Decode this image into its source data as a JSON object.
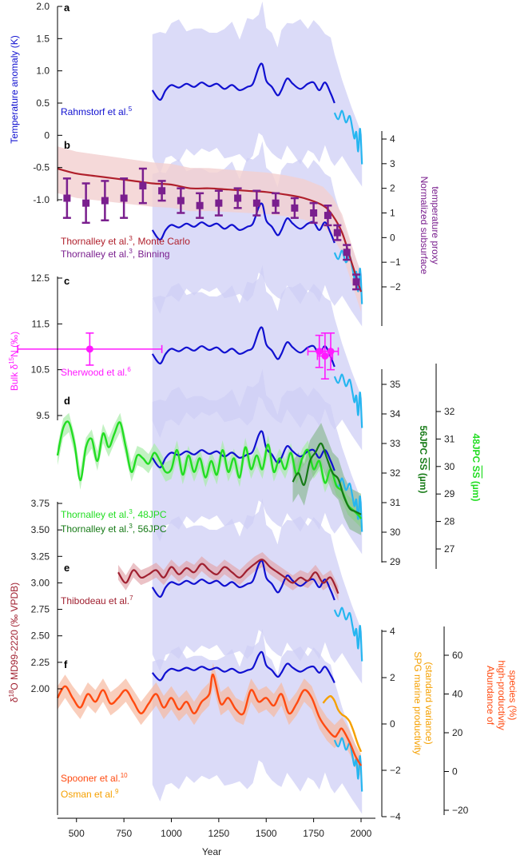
{
  "figure": {
    "x_axis": {
      "label": "Year",
      "min": 400,
      "max": 2020,
      "ticks": [
        500,
        750,
        1000,
        1250,
        1500,
        1750,
        2000
      ],
      "tick_labels": [
        "500",
        "750",
        "1000",
        "1250",
        "1500",
        "1750",
        "2000"
      ]
    },
    "colors": {
      "band": "#cfcff6",
      "rahmstorf": "#1010d0",
      "light_blue": "#26b6f0",
      "thornalley_mc": "#b0202c",
      "thornalley_mc_band": "#f2cfcf",
      "thornalley_bin": "#7a1f8e",
      "sherwood": "#ff1aff",
      "green48": "#22dd22",
      "green56": "#167a16",
      "thibodeau": "#a02030",
      "spooner": "#ff4a10",
      "osman": "#f5a000"
    },
    "panels": [
      {
        "letter": "a",
        "legend": [
          {
            "text": "Rahmstorf et al.",
            "sup": "5",
            "color": "#1010d0"
          }
        ]
      },
      {
        "letter": "b",
        "legend": [
          {
            "text": "Thornalley et al.",
            "sup": "3",
            "suffix": ", Monte Carlo",
            "color": "#b0202c"
          },
          {
            "text": "Thornalley et al.",
            "sup": "3",
            "suffix": ", Binning",
            "color": "#7a1f8e"
          }
        ]
      },
      {
        "letter": "c",
        "legend": [
          {
            "text": "Sherwood et al.",
            "sup": "6",
            "color": "#ff1aff"
          }
        ]
      },
      {
        "letter": "d",
        "legend": [
          {
            "text": "Thornalley et al.",
            "sup": "3",
            "suffix": ", 48JPC",
            "color": "#22dd22"
          },
          {
            "text": "Thornalley et al.",
            "sup": "3",
            "suffix": ", 56JPC",
            "color": "#167a16"
          }
        ]
      },
      {
        "letter": "e",
        "legend": [
          {
            "text": "Thibodeau et al.",
            "sup": "7",
            "color": "#a02030"
          }
        ]
      },
      {
        "letter": "f",
        "legend": [
          {
            "text": "Spooner et al.",
            "sup": "10",
            "color": "#ff4a10"
          },
          {
            "text": "Osman et al.",
            "sup": "9",
            "color": "#f5a000"
          }
        ]
      }
    ],
    "left_axes": [
      {
        "id": "temp",
        "label": "Temperature anomaly (K)",
        "color": "#1010d0",
        "range": [
          -1.3,
          2.0
        ],
        "ticks": [
          2.0,
          1.5,
          1.0,
          0.5,
          0,
          -0.5,
          -1.0
        ],
        "tick_labels": [
          "2.0",
          "1.5",
          "1.0",
          "0.5",
          "0",
          "-0.5",
          "-1.0"
        ]
      },
      {
        "id": "d15n",
        "label_parts": [
          "Bulk δ",
          "15",
          "N (‰)"
        ],
        "color": "#ff1aff",
        "range": [
          9.3,
          12.8
        ],
        "ticks": [
          12.5,
          11.5,
          10.5,
          9.5
        ],
        "tick_labels": [
          "12.5",
          "11.5",
          "10.5",
          "9.5"
        ]
      },
      {
        "id": "d18o",
        "label_parts": [
          "δ",
          "18",
          "O MD99-2220 (‰ VPDB)"
        ],
        "color": "#a02030",
        "range": [
          1.55,
          3.75
        ],
        "ticks": [
          3.75,
          3.5,
          3.25,
          3.0,
          2.75,
          2.5,
          2.25,
          2.0
        ],
        "tick_labels": [
          "3.75",
          "3.50",
          "3.25",
          "3.00",
          "2.75",
          "2.50",
          "2.25",
          "2.00"
        ]
      }
    ],
    "right_axes": [
      {
        "id": "subsurf",
        "label_lines": [
          "Normalized subsurface",
          "temperature proxy"
        ],
        "color": "#7a1f8e",
        "range": [
          -3,
          4
        ],
        "ticks": [
          4,
          3,
          2,
          1,
          0,
          -1,
          -2
        ],
        "tick_labels": [
          "4",
          "3",
          "2",
          "1",
          "0",
          "−1",
          "−2"
        ]
      },
      {
        "id": "jpc56",
        "label_parts": [
          "56JPC ",
          "SS",
          " (µm)"
        ],
        "color": "#167a16",
        "range": [
          29,
          35.5
        ],
        "ticks": [
          35,
          34,
          33,
          32,
          31,
          30,
          29
        ],
        "tick_labels": [
          "35",
          "34",
          "33",
          "32",
          "31",
          "30",
          "29"
        ]
      },
      {
        "id": "jpc48",
        "label_parts": [
          "48JPC ",
          "SS",
          " (µm)"
        ],
        "color": "#22dd22",
        "range": [
          26.5,
          33
        ],
        "ticks": [
          32,
          31,
          30,
          29,
          28,
          27
        ],
        "tick_labels": [
          "32",
          "31",
          "30",
          "29",
          "28",
          "27"
        ]
      },
      {
        "id": "spg",
        "label_lines": [
          "SPG marine productivity",
          "(standard variance)"
        ],
        "color": "#f5a000",
        "range": [
          -4,
          4
        ],
        "ticks": [
          4,
          2,
          0,
          -2,
          -4
        ],
        "tick_labels": [
          "4",
          "2",
          "0",
          "−2",
          "−4"
        ]
      },
      {
        "id": "highprod",
        "label_lines": [
          "Abundance of",
          "high-productivity",
          "species (%)"
        ],
        "color": "#ff4a10",
        "range": [
          -25,
          75
        ],
        "ticks": [
          60,
          40,
          20,
          0,
          -20
        ],
        "tick_labels": [
          "60",
          "40",
          "20",
          "0",
          "−20"
        ]
      }
    ]
  },
  "chart_data": {
    "type": "line",
    "xlabel": "Year",
    "xlim": [
      400,
      2020
    ],
    "series": [
      {
        "panel": "a",
        "axis": "temp",
        "color": "#1010d0",
        "x": [
          900,
          940,
          970,
          1000,
          1040,
          1080,
          1120,
          1160,
          1200,
          1240,
          1280,
          1320,
          1360,
          1400,
          1430,
          1460,
          1480,
          1500,
          1530,
          1560,
          1580,
          1610,
          1640,
          1680,
          1720,
          1750,
          1780,
          1810,
          1840,
          1860
        ],
        "y": [
          0.7,
          0.55,
          0.7,
          0.78,
          0.74,
          0.8,
          0.75,
          0.82,
          0.76,
          0.8,
          0.72,
          0.78,
          0.7,
          0.75,
          0.8,
          1.05,
          1.1,
          0.85,
          0.75,
          0.62,
          0.7,
          0.88,
          0.8,
          0.72,
          0.8,
          0.82,
          0.7,
          0.82,
          0.65,
          0.5
        ]
      },
      {
        "panel": "a",
        "axis": "temp",
        "color": "#26b6f0",
        "x": [
          1860,
          1880,
          1900,
          1920,
          1940,
          1955,
          1965,
          1975,
          1985,
          1995,
          2005
        ],
        "y": [
          0.35,
          0.25,
          0.38,
          0.2,
          0.3,
          0.1,
          -0.05,
          0.05,
          -0.25,
          0.1,
          -0.45
        ]
      },
      {
        "panel": "b",
        "axis": "subsurf",
        "color": "#b0202c",
        "x": [
          400,
          500,
          600,
          700,
          800,
          900,
          1000,
          1100,
          1200,
          1300,
          1400,
          1500,
          1600,
          1700,
          1800,
          1850,
          1900,
          1950,
          2000
        ],
        "y": [
          2.8,
          2.6,
          2.5,
          2.4,
          2.3,
          2.2,
          2.15,
          2.0,
          2.0,
          1.95,
          1.9,
          1.85,
          1.75,
          1.6,
          1.3,
          0.9,
          0.2,
          -1.0,
          -2.2
        ]
      },
      {
        "panel": "b",
        "axis": "subsurf",
        "color": "#7a1f8e",
        "markers": "square-errorbar",
        "x": [
          450,
          550,
          650,
          750,
          850,
          950,
          1050,
          1150,
          1250,
          1350,
          1450,
          1550,
          1650,
          1750,
          1825,
          1875,
          1925,
          1975
        ],
        "y": [
          1.6,
          1.4,
          1.5,
          1.6,
          2.1,
          1.9,
          1.5,
          1.3,
          1.4,
          1.6,
          1.4,
          1.4,
          1.2,
          1.0,
          0.9,
          0.2,
          -0.6,
          -1.8
        ],
        "err": [
          0.8,
          0.8,
          0.8,
          0.8,
          0.7,
          0.4,
          0.5,
          0.5,
          0.5,
          0.4,
          0.5,
          0.4,
          0.4,
          0.4,
          0.4,
          0.3,
          0.3,
          0.3
        ]
      },
      {
        "panel": "c",
        "axis": "d15n",
        "color": "#ff1aff",
        "markers": "circle-errorbar",
        "x": [
          570,
          1780,
          1810,
          1840
        ],
        "y": [
          10.95,
          10.9,
          10.8,
          10.9
        ],
        "xerr": [
          380,
          60,
          40,
          40
        ],
        "yerr": [
          0.35,
          0.35,
          0.5,
          0.4
        ]
      },
      {
        "panel": "d",
        "axis": "jpc48",
        "color": "#22dd22",
        "x": [
          400,
          430,
          460,
          490,
          520,
          550,
          580,
          610,
          640,
          670,
          700,
          730,
          760,
          790,
          820,
          850,
          880,
          910,
          940,
          970,
          1000,
          1030,
          1060,
          1090,
          1120,
          1150,
          1180,
          1210,
          1240,
          1270,
          1300,
          1330,
          1360,
          1390,
          1420,
          1450,
          1480,
          1510,
          1540,
          1570,
          1600,
          1630,
          1660,
          1690,
          1720,
          1750,
          1780,
          1810,
          1840,
          1870,
          1900,
          1930,
          1960,
          1990,
          2000
        ],
        "y": [
          30.4,
          31.4,
          31.6,
          30.8,
          29.5,
          30.7,
          31.0,
          30.2,
          31.2,
          30.7,
          31.2,
          31.6,
          30.7,
          29.8,
          30.4,
          30.3,
          30.1,
          30.5,
          30.2,
          29.8,
          29.9,
          30.6,
          29.7,
          30.4,
          29.8,
          30.3,
          29.6,
          30.2,
          29.7,
          30.6,
          29.8,
          30.3,
          29.6,
          30.7,
          29.9,
          30.4,
          29.9,
          30.8,
          29.8,
          30.3,
          29.9,
          30.5,
          29.7,
          30.3,
          30.6,
          29.9,
          30.2,
          29.4,
          29.9,
          29.3,
          29.1,
          28.6,
          28.4,
          28.2,
          28.1
        ]
      },
      {
        "panel": "d",
        "axis": "jpc56",
        "color": "#167a16",
        "x": [
          1640,
          1670,
          1700,
          1730,
          1760,
          1790,
          1820,
          1850,
          1880,
          1910,
          1940,
          1970,
          2000
        ],
        "y": [
          31.7,
          32.0,
          31.6,
          32.4,
          32.7,
          33.0,
          32.5,
          32.0,
          31.8,
          31.2,
          30.8,
          30.7,
          30.6
        ]
      },
      {
        "panel": "e",
        "axis": "d18o",
        "color": "#a02030",
        "x": [
          720,
          760,
          800,
          840,
          880,
          920,
          960,
          1000,
          1040,
          1080,
          1120,
          1160,
          1200,
          1240,
          1280,
          1320,
          1360,
          1400,
          1440,
          1480,
          1520,
          1560,
          1600,
          1640,
          1680,
          1720,
          1760,
          1800,
          1840,
          1880
        ],
        "y": [
          3.1,
          3.0,
          3.12,
          3.05,
          3.08,
          3.12,
          3.05,
          3.15,
          3.08,
          3.14,
          3.1,
          3.18,
          3.12,
          3.08,
          3.15,
          3.1,
          3.05,
          3.12,
          3.18,
          3.22,
          3.15,
          3.1,
          3.05,
          3.0,
          3.05,
          3.02,
          3.1,
          3.0,
          3.05,
          2.9
        ]
      },
      {
        "panel": "f",
        "axis": "highprod",
        "color": "#ff4a10",
        "x": [
          400,
          440,
          480,
          520,
          560,
          600,
          640,
          680,
          720,
          760,
          800,
          840,
          880,
          920,
          960,
          1000,
          1040,
          1080,
          1120,
          1160,
          1200,
          1220,
          1260,
          1300,
          1340,
          1380,
          1420,
          1460,
          1500,
          1540,
          1580,
          1620,
          1660,
          1700,
          1740,
          1780,
          1820,
          1860,
          1880,
          1900,
          1940,
          1970,
          2000
        ],
        "y": [
          38,
          44,
          38,
          33,
          40,
          36,
          42,
          35,
          38,
          42,
          36,
          30,
          35,
          40,
          33,
          38,
          32,
          36,
          30,
          36,
          40,
          50,
          35,
          38,
          32,
          30,
          42,
          36,
          38,
          34,
          40,
          30,
          35,
          42,
          38,
          28,
          22,
          18,
          20,
          22,
          15,
          8,
          3
        ]
      },
      {
        "panel": "f",
        "axis": "spg",
        "color": "#f5a000",
        "x": [
          1800,
          1820,
          1840,
          1860,
          1880,
          1900,
          1920,
          1940,
          1960,
          1980,
          2000
        ],
        "y": [
          0.9,
          1.1,
          1.2,
          1.0,
          0.6,
          0.4,
          0.3,
          0.1,
          -0.3,
          -0.8,
          -1.2
        ]
      },
      {
        "panel": "f",
        "axis": "temp_f",
        "color": "#1010d0",
        "x": [
          900,
          940,
          970,
          1000,
          1040,
          1080,
          1120,
          1160,
          1200,
          1240,
          1280,
          1320,
          1360,
          1400,
          1430,
          1460,
          1480,
          1500,
          1530,
          1560,
          1580,
          1610,
          1640,
          1680,
          1720,
          1750,
          1780,
          1810,
          1840,
          1860
        ],
        "y": [
          0.7,
          0.55,
          0.7,
          0.78,
          0.74,
          0.8,
          0.75,
          0.82,
          0.76,
          0.8,
          0.72,
          0.78,
          0.7,
          0.75,
          0.8,
          1.05,
          1.1,
          0.85,
          0.75,
          0.62,
          0.7,
          0.88,
          0.8,
          0.72,
          0.8,
          0.82,
          0.7,
          0.82,
          0.65,
          0.5
        ]
      }
    ]
  }
}
